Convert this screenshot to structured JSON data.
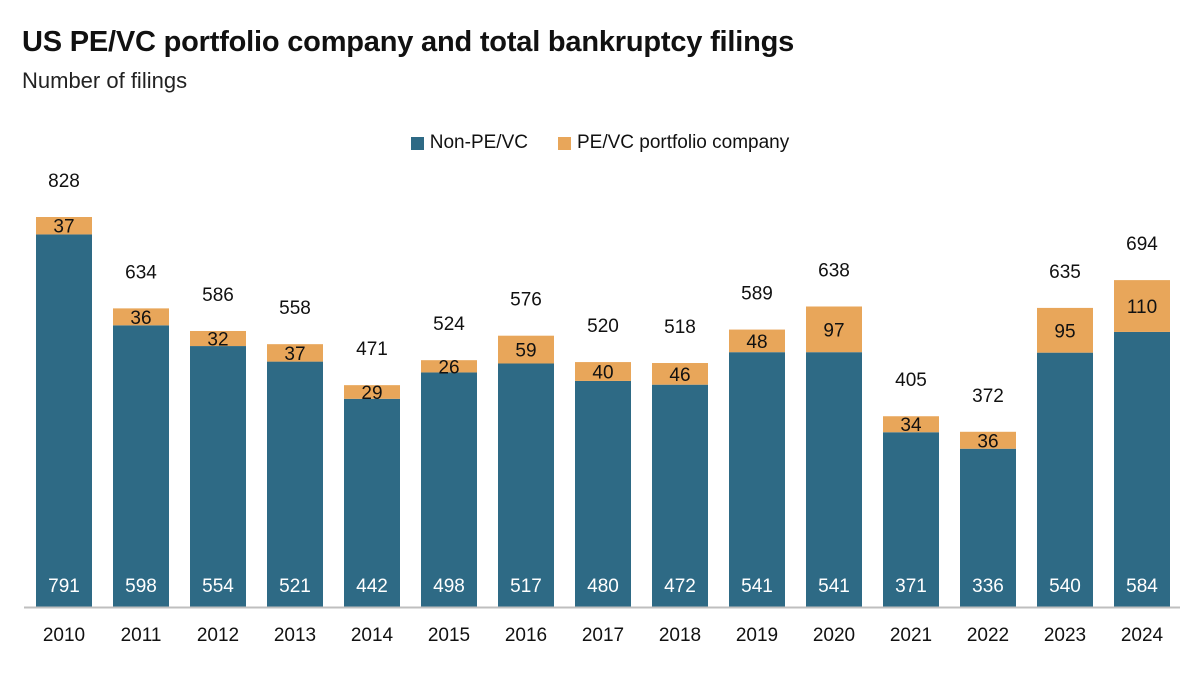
{
  "chart_data": {
    "type": "bar",
    "stacked": true,
    "title": "US PE/VC portfolio company and total bankruptcy filings",
    "subtitle": "Number of filings",
    "categories": [
      "2010",
      "2011",
      "2012",
      "2013",
      "2014",
      "2015",
      "2016",
      "2017",
      "2018",
      "2019",
      "2020",
      "2021",
      "2022",
      "2023",
      "2024"
    ],
    "series": [
      {
        "name": "Non-PE/VC",
        "color": "#2e6a85",
        "values": [
          791,
          598,
          554,
          521,
          442,
          498,
          517,
          480,
          472,
          541,
          541,
          371,
          336,
          540,
          584
        ]
      },
      {
        "name": "PE/VC portfolio company",
        "color": "#e8a65a",
        "values": [
          37,
          36,
          32,
          37,
          29,
          26,
          59,
          40,
          46,
          48,
          97,
          34,
          36,
          95,
          110
        ]
      }
    ],
    "totals": [
      828,
      634,
      586,
      558,
      471,
      524,
      576,
      520,
      518,
      589,
      638,
      405,
      372,
      635,
      694
    ],
    "legend_position": "top-center",
    "grid": false,
    "ylim": [
      0,
      828
    ]
  }
}
